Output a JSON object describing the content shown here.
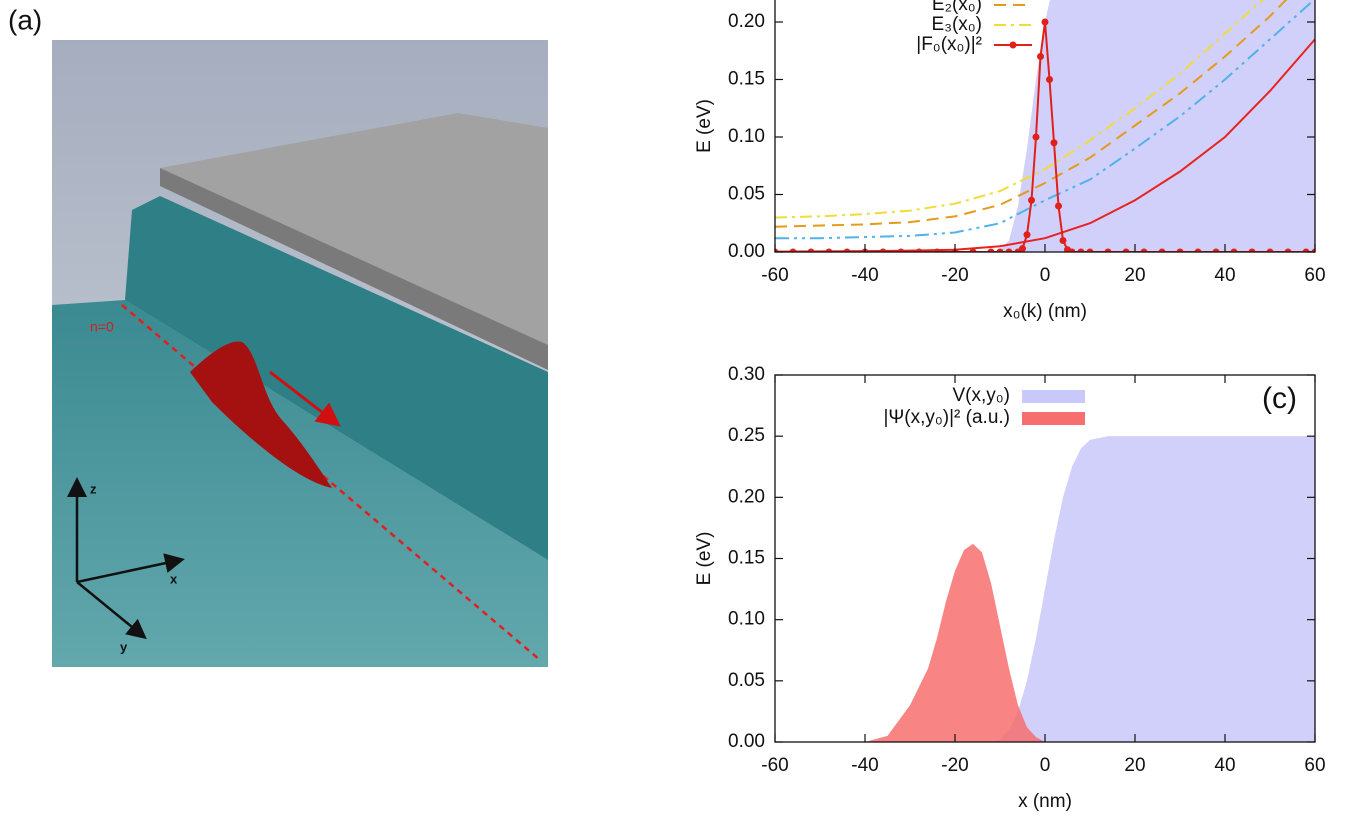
{
  "panel_a": {
    "label": "(a)",
    "line_label": "n=0",
    "axis_z": "z",
    "axis_x": "x",
    "axis_y": "y"
  },
  "chart_data": [
    {
      "type": "line",
      "xlabel": "x₀(k) (nm)",
      "ylabel": "E (eV)",
      "xlim": [
        -60,
        60
      ],
      "ylim": [
        0,
        0.25
      ],
      "xticks": [
        -60,
        -40,
        -20,
        0,
        20,
        40,
        60
      ],
      "yticks": [
        {
          "value": 0,
          "label": "0.00"
        },
        {
          "value": 0.05,
          "label": "0.05"
        },
        {
          "value": 0.1,
          "label": "0.10"
        },
        {
          "value": 0.15,
          "label": "0.15"
        },
        {
          "value": 0.2,
          "label": "0.20"
        }
      ],
      "legend": "top-left",
      "series": [
        {
          "style": "area",
          "color": "#c8c8fa",
          "x": [
            -60,
            -20,
            -12,
            -10,
            -8,
            -6,
            -4,
            -2,
            0,
            2,
            4,
            6,
            10,
            60
          ],
          "values": [
            0,
            0,
            0,
            0.002,
            0.01,
            0.04,
            0.09,
            0.15,
            0.2,
            0.235,
            0.25,
            0.25,
            0.25,
            0.25
          ]
        },
        {
          "style": "line",
          "color": "#e8231f",
          "x": [
            -60,
            -50,
            -40,
            -30,
            -20,
            -10,
            0,
            10,
            20,
            30,
            40,
            50,
            60
          ],
          "values": [
            0.0003,
            0.0005,
            0.0008,
            0.0012,
            0.002,
            0.005,
            0.012,
            0.025,
            0.045,
            0.07,
            0.1,
            0.14,
            0.185
          ]
        },
        {
          "style": "line",
          "color": "#4fb3e8",
          "dash": "14 5 3 5 3 5",
          "x": [
            -60,
            -50,
            -40,
            -30,
            -20,
            -10,
            0,
            10,
            20,
            30,
            40,
            50,
            60
          ],
          "values": [
            0.012,
            0.012,
            0.013,
            0.014,
            0.017,
            0.025,
            0.045,
            0.063,
            0.09,
            0.118,
            0.15,
            0.185,
            0.22
          ]
        },
        {
          "name": "E₂(x₀)",
          "style": "line",
          "color": "#e69a1a",
          "dash": "12 7",
          "x": [
            -60,
            -50,
            -40,
            -30,
            -20,
            -10,
            0,
            10,
            20,
            30,
            40,
            50,
            60
          ],
          "values": [
            0.022,
            0.023,
            0.024,
            0.026,
            0.031,
            0.041,
            0.06,
            0.082,
            0.11,
            0.138,
            0.17,
            0.205,
            0.245
          ]
        },
        {
          "name": "E₃(x₀)",
          "style": "line",
          "color": "#f0dc3a",
          "dash": "12 5 3 5",
          "x": [
            -60,
            -50,
            -40,
            -30,
            -20,
            -10,
            0,
            10,
            20,
            30,
            40,
            50,
            60
          ],
          "values": [
            0.03,
            0.031,
            0.033,
            0.036,
            0.042,
            0.053,
            0.072,
            0.097,
            0.125,
            0.155,
            0.19,
            0.225,
            0.248
          ]
        },
        {
          "name": "|F₀(x₀)|²",
          "style": "line",
          "markers": true,
          "color": "#e0201b",
          "x": [
            -60,
            -56,
            -52,
            -48,
            -44,
            -40,
            -36,
            -32,
            -28,
            -24,
            -20,
            -16,
            -12,
            -10,
            -8,
            -6,
            -5,
            -4,
            -3,
            -2,
            -1,
            0,
            1,
            2,
            3,
            4,
            5,
            6,
            8,
            10,
            14,
            18,
            22,
            26,
            30,
            34,
            38,
            42,
            46,
            50,
            54,
            58,
            60
          ],
          "values": [
            0,
            0,
            0,
            0,
            0,
            0,
            0,
            0,
            0,
            0,
            0,
            0,
            0,
            0,
            0,
            0,
            0.003,
            0.015,
            0.045,
            0.1,
            0.17,
            0.2,
            0.15,
            0.095,
            0.04,
            0.01,
            0.002,
            0,
            0,
            0,
            0,
            0,
            0,
            0,
            0,
            0,
            0,
            0,
            0,
            0,
            0,
            0,
            0
          ]
        }
      ]
    },
    {
      "type": "line",
      "panel_label": "(c)",
      "xlabel": "x (nm)",
      "ylabel": "E (eV)",
      "xlim": [
        -60,
        60
      ],
      "ylim": [
        0,
        0.3
      ],
      "xticks": [
        -60,
        -40,
        -20,
        0,
        20,
        40,
        60
      ],
      "yticks": [
        {
          "value": 0,
          "label": "0.00"
        },
        {
          "value": 0.05,
          "label": "0.05"
        },
        {
          "value": 0.1,
          "label": "0.10"
        },
        {
          "value": 0.15,
          "label": "0.15"
        },
        {
          "value": 0.2,
          "label": "0.20"
        },
        {
          "value": 0.25,
          "label": "0.25"
        },
        {
          "value": 0.3,
          "label": "0.30"
        }
      ],
      "legend": "top-right",
      "series": [
        {
          "name": "V(x,y₀)",
          "style": "area",
          "color": "#c8c8fa",
          "x": [
            -60,
            -20,
            -12,
            -10,
            -8,
            -6,
            -4,
            -2,
            0,
            2,
            4,
            6,
            8,
            10,
            14,
            20,
            60
          ],
          "values": [
            0,
            0,
            0,
            0.002,
            0.01,
            0.025,
            0.05,
            0.085,
            0.125,
            0.165,
            0.2,
            0.225,
            0.24,
            0.247,
            0.25,
            0.25,
            0.25
          ]
        },
        {
          "name": "|Ψ(x,y₀)|² (a.u.)",
          "style": "area",
          "color": "#f76e6e",
          "x": [
            -60,
            -40,
            -35,
            -30,
            -26,
            -24,
            -22,
            -20,
            -18,
            -16,
            -14,
            -12,
            -10,
            -8,
            -6,
            -4,
            -2,
            0,
            60
          ],
          "values": [
            0,
            0,
            0.005,
            0.03,
            0.06,
            0.085,
            0.115,
            0.14,
            0.157,
            0.162,
            0.155,
            0.13,
            0.095,
            0.06,
            0.03,
            0.012,
            0.004,
            0,
            0
          ]
        }
      ]
    }
  ]
}
